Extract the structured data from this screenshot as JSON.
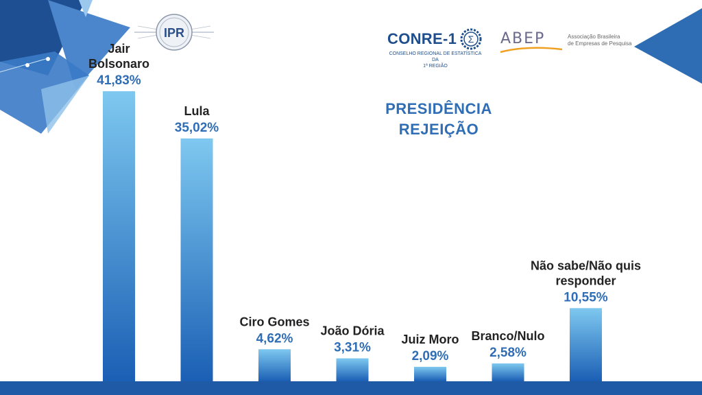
{
  "title_line1": "PRESIDÊNCIA",
  "title_line2": "REJEIÇÃO",
  "logos": {
    "ipr": "IPR",
    "conre_name": "CONRE-1",
    "conre_sub1": "CONSELHO REGIONAL DE ESTATÍSTICA DA",
    "conre_sub2": "1ª REGIÃO",
    "abep_name": "ABEP",
    "abep_sub1": "Associação Brasileira",
    "abep_sub2": "de Empresas de Pesquisa"
  },
  "colors": {
    "accent": "#2f6db5",
    "bar_top": "#7ec8f0",
    "bar_bottom": "#1a5fb4",
    "label": "#222222",
    "value": "#2f6db5"
  },
  "chart_data": {
    "type": "bar",
    "title": "PRESIDÊNCIA REJEIÇÃO",
    "categories": [
      "Jair Bolsonaro",
      "Lula",
      "Ciro Gomes",
      "João Dória",
      "Juiz Moro",
      "Branco/Nulo",
      "Não sabe/Não quis responder"
    ],
    "category_lines": [
      [
        "Jair",
        "Bolsonaro"
      ],
      [
        "Lula"
      ],
      [
        "Ciro Gomes"
      ],
      [
        "João Dória"
      ],
      [
        "Juiz Moro"
      ],
      [
        "Branco/Nulo"
      ],
      [
        "Não sabe/Não quis",
        "responder"
      ]
    ],
    "values": [
      41.83,
      35.02,
      4.62,
      3.31,
      2.09,
      2.58,
      10.55
    ],
    "value_labels": [
      "41,83%",
      "35,02%",
      "4,62%",
      "3,31%",
      "2,09%",
      "2,58%",
      "10,55%"
    ],
    "ylim": [
      0,
      45
    ],
    "grid": false
  }
}
